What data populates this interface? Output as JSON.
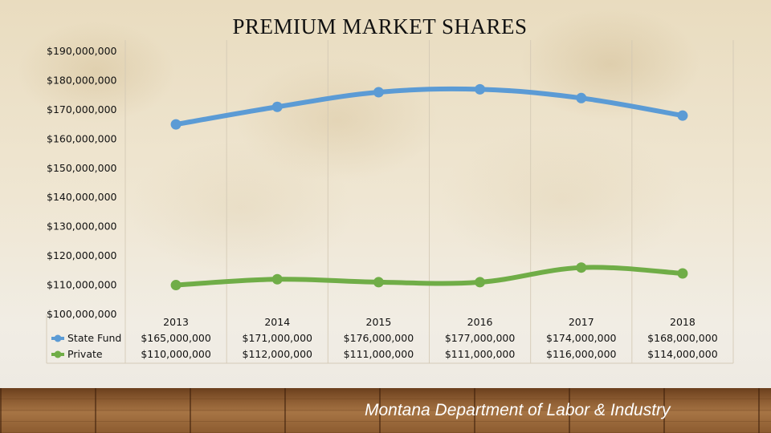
{
  "footer": "Montana Department of Labor & Industry",
  "chart_data": {
    "type": "line",
    "title": "PREMIUM MARKET SHARES",
    "categories": [
      "2013",
      "2014",
      "2015",
      "2016",
      "2017",
      "2018"
    ],
    "ylim": [
      100000000,
      190000000
    ],
    "yticks": [
      "$190,000,000",
      "$180,000,000",
      "$170,000,000",
      "$160,000,000",
      "$150,000,000",
      "$140,000,000",
      "$130,000,000",
      "$120,000,000",
      "$110,000,000",
      "$100,000,000"
    ],
    "ytick_values": [
      190000000,
      180000000,
      170000000,
      160000000,
      150000000,
      140000000,
      130000000,
      120000000,
      110000000,
      100000000
    ],
    "grid": "vertical",
    "legend": "data-table",
    "series": [
      {
        "name": "State Fund",
        "color": "#5b9bd5",
        "values": [
          165000000,
          171000000,
          176000000,
          177000000,
          174000000,
          168000000
        ],
        "labels": [
          "$165,000,000",
          "$171,000,000",
          "$176,000,000",
          "$177,000,000",
          "$174,000,000",
          "$168,000,000"
        ]
      },
      {
        "name": "Private",
        "color": "#70ad47",
        "values": [
          110000000,
          112000000,
          111000000,
          111000000,
          116000000,
          114000000
        ],
        "labels": [
          "$110,000,000",
          "$112,000,000",
          "$111,000,000",
          "$111,000,000",
          "$116,000,000",
          "$114,000,000"
        ]
      }
    ]
  }
}
